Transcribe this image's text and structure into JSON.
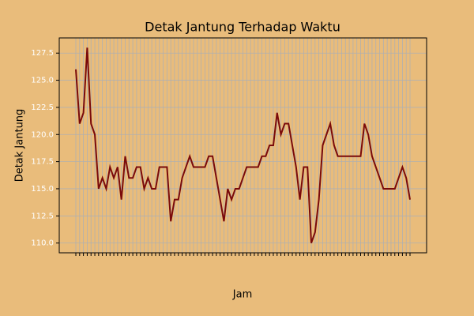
{
  "chart_data": {
    "type": "line",
    "title": "Detak Jantung Terhadap Waktu",
    "xlabel": "Jam",
    "ylabel": "Detak Jantung",
    "categories": [
      null,
      null,
      null,
      null,
      null,
      null,
      null,
      null,
      null,
      null,
      null,
      null,
      null,
      null,
      null,
      null,
      null,
      null,
      null,
      null,
      null,
      null,
      null,
      null,
      null,
      null,
      null,
      null,
      null,
      null,
      null,
      null,
      null,
      null,
      null,
      null,
      null,
      null,
      null,
      null,
      null,
      null,
      null,
      null,
      null,
      null,
      null,
      null,
      null,
      null,
      null,
      null,
      null,
      null,
      null,
      null,
      null,
      null,
      null,
      null,
      null,
      null,
      null,
      null,
      null,
      null,
      null,
      null,
      null,
      null,
      null,
      null,
      null,
      null,
      null,
      null,
      null,
      null,
      null,
      null,
      null,
      null,
      null,
      null,
      null,
      null,
      null,
      null,
      null
    ],
    "series": [
      {
        "name": "Detak Jantung",
        "color": "#7a0a0a",
        "values": [
          126,
          121,
          122,
          128,
          121,
          120,
          115,
          116,
          115,
          117,
          116,
          117,
          114,
          118,
          116,
          116,
          117,
          117,
          115,
          116,
          115,
          115,
          117,
          117,
          117,
          112,
          114,
          114,
          116,
          117,
          118,
          117,
          117,
          117,
          117,
          118,
          118,
          116,
          114,
          112,
          115,
          114,
          115,
          115,
          116,
          117,
          117,
          117,
          117,
          118,
          118,
          119,
          119,
          122,
          120,
          121,
          121,
          119,
          117,
          114,
          117,
          117,
          110,
          111,
          114,
          119,
          120,
          121,
          119,
          118,
          118,
          118,
          118,
          118,
          118,
          118,
          121,
          120,
          118,
          117,
          116,
          115,
          115,
          115,
          115,
          116,
          117,
          116,
          114
        ]
      }
    ],
    "ylim": [
      109.1,
      128.9
    ],
    "yticks": [
      {
        "value": 110,
        "label": "110.0"
      },
      {
        "value": 112.5,
        "label": "112.5"
      },
      {
        "value": 115,
        "label": "115.0"
      },
      {
        "value": 117.5,
        "label": "117.5"
      },
      {
        "value": 120,
        "label": "120.0"
      },
      {
        "value": 122.5,
        "label": "122.5"
      },
      {
        "value": 125,
        "label": "125.0"
      },
      {
        "value": 127.5,
        "label": "127.5"
      }
    ],
    "grid": true
  }
}
